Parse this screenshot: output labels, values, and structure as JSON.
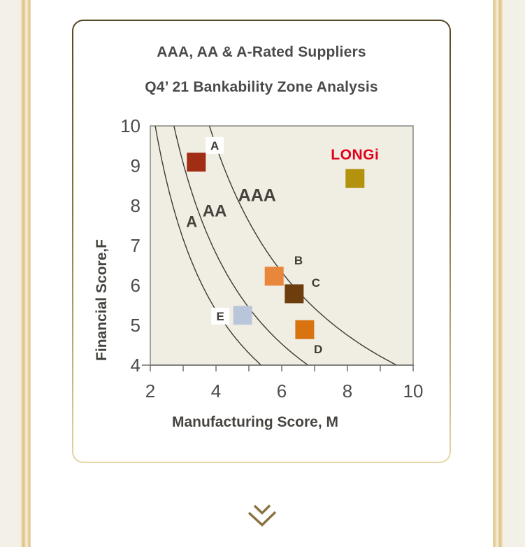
{
  "chart_data": {
    "type": "scatter",
    "title": "AAA, AA & A-Rated Suppliers",
    "subtitle": "Q4’ 21 Bankability Zone Analysis",
    "xlabel": "Manufacturing Score, M",
    "ylabel": "Financial Score,F",
    "xlim": [
      2,
      10
    ],
    "ylim": [
      4,
      10
    ],
    "x_ticks_all": [
      2,
      3,
      4,
      5,
      6,
      7,
      8,
      9,
      10
    ],
    "x_ticks_labeled": [
      2,
      4,
      6,
      8,
      10
    ],
    "y_ticks_labeled": [
      4,
      5,
      6,
      7,
      8,
      9,
      10
    ],
    "grid": false,
    "zone_curves": [
      {
        "name": "A",
        "iso_product_k": 21.5
      },
      {
        "name": "AA",
        "iso_product_k": 27.2
      },
      {
        "name": "AAA",
        "iso_product_k": 38.0
      }
    ],
    "zone_labels": [
      {
        "text": "A",
        "x": 3.26,
        "y": 7.6,
        "size": 22
      },
      {
        "text": "AA",
        "x": 3.96,
        "y": 7.88,
        "size": 24
      },
      {
        "text": "AAA",
        "x": 5.25,
        "y": 8.27,
        "size": 25
      }
    ],
    "points": [
      {
        "label": "LONGi",
        "x": 8.23,
        "y": 8.68,
        "color": "#b3920e",
        "boxed_label": false,
        "brand_logo": true
      },
      {
        "label": "A",
        "x": 3.4,
        "y": 9.09,
        "color": "#a22d15",
        "boxed_label": true,
        "label_x": 3.96,
        "label_y": 9.51
      },
      {
        "label": "B",
        "x": 5.77,
        "y": 6.23,
        "color": "#e8873c",
        "boxed_label": false,
        "label_x": 6.51,
        "label_y": 6.63
      },
      {
        "label": "C",
        "x": 6.38,
        "y": 5.79,
        "color": "#6e3d0e",
        "boxed_label": false,
        "label_x": 7.04,
        "label_y": 6.07
      },
      {
        "label": "D",
        "x": 6.7,
        "y": 4.89,
        "color": "#d8730f",
        "boxed_label": false,
        "label_x": 7.11,
        "label_y": 4.4
      },
      {
        "label": "E",
        "x": 4.81,
        "y": 5.25,
        "color": "#b9c6da",
        "boxed_label": true,
        "label_x": 4.13,
        "label_y": 5.23
      }
    ],
    "brand": {
      "text": "LONGi",
      "x": 8.23,
      "y": 9.28,
      "color": "#e2001a"
    }
  },
  "footer": {
    "chevron_icon": "double-chevron-down",
    "chevron_color": "#8a7240"
  },
  "colors": {
    "plot_bg": "#f0ede3",
    "spine": "#8f8d88",
    "curve": "#3e3a35",
    "zone_label_text": "#45413b",
    "point_label_text": "#3f3b36",
    "tick_text": "#4c4c4c",
    "axis_title_text": "#474440",
    "label_box_fill": "#ffffff",
    "title_text": "#4a4a4a"
  }
}
